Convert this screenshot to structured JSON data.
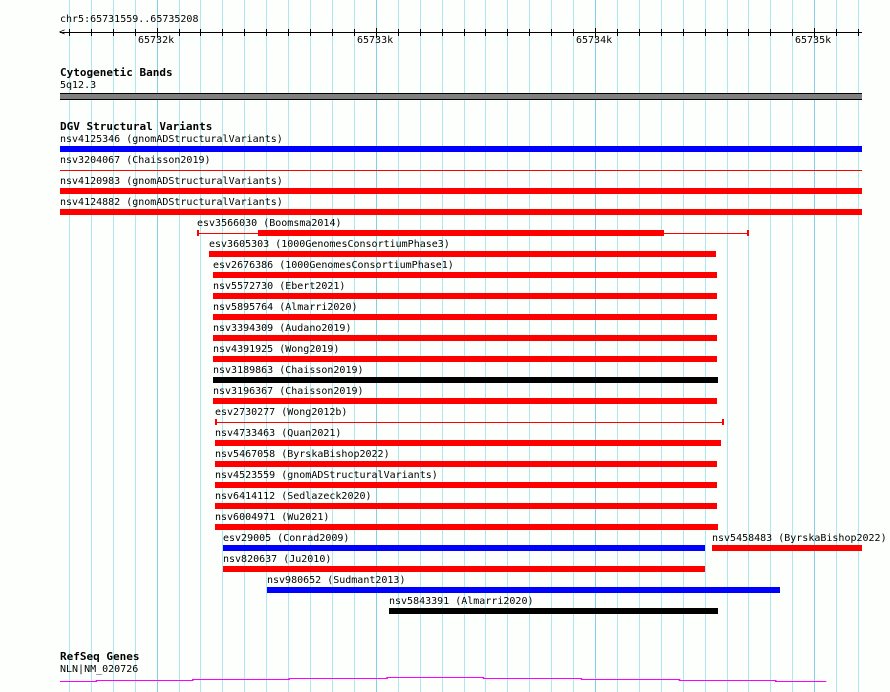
{
  "ruler": {
    "location": "chr5:65731559..65735208",
    "start": 65731559,
    "end": 65735208,
    "tick_labels": [
      {
        "pos": 65732000,
        "label": "65732k"
      },
      {
        "pos": 65733000,
        "label": "65733k"
      },
      {
        "pos": 65734000,
        "label": "65734k"
      },
      {
        "pos": 65735000,
        "label": "65735k"
      }
    ]
  },
  "tracks": {
    "cytoband": {
      "title": "Cytogenetic Bands",
      "band": "5q12.3",
      "color": "#808080"
    },
    "dgv": {
      "title": "DGV Structural Variants"
    },
    "refseq": {
      "title": "RefSeq Genes",
      "gene": "NLN|NM_020726",
      "color": "#ff00ff"
    }
  },
  "colors": {
    "red": "#ff0000",
    "blue": "#0000ff",
    "black": "#000000"
  },
  "variants": [
    {
      "label": "nsv4125346 (gnomADStructuralVariants)",
      "row": 0,
      "start": 65731500,
      "end": 65735260,
      "color": "blue",
      "style": "thick"
    },
    {
      "label": "nsv3204067 (Chaisson2019)",
      "row": 1,
      "start": 65731500,
      "end": 65735260,
      "color": "red",
      "style": "line"
    },
    {
      "label": "nsv4120983 (gnomADStructuralVariants)",
      "row": 2,
      "start": 65731500,
      "end": 65735260,
      "color": "red",
      "style": "thick"
    },
    {
      "label": "nsv4124882 (gnomADStructuralVariants)",
      "row": 3,
      "start": 65731500,
      "end": 65735250,
      "color": "red",
      "style": "thick"
    },
    {
      "label": "esv3566030 (Boomsma2014)",
      "row": 4,
      "start": 65732184,
      "end": 65734702,
      "thick_start": 65732462,
      "thick_end": 65734315,
      "color": "red",
      "style": "mixed"
    },
    {
      "label": "esv3605303 (1000GenomesConsortiumPhase3)",
      "row": 5,
      "start": 65732239,
      "end": 65734552,
      "color": "red",
      "style": "thick"
    },
    {
      "label": "esv2676386 (1000GenomesConsortiumPhase1)",
      "row": 6,
      "start": 65732257,
      "end": 65734556,
      "color": "red",
      "style": "thick"
    },
    {
      "label": "nsv5572730 (Ebert2021)",
      "row": 7,
      "start": 65732257,
      "end": 65734556,
      "color": "red",
      "style": "thick"
    },
    {
      "label": "nsv5895764 (Almarri2020)",
      "row": 8,
      "start": 65732257,
      "end": 65734556,
      "color": "red",
      "style": "thick"
    },
    {
      "label": "nsv3394309 (Audano2019)",
      "row": 9,
      "start": 65732257,
      "end": 65734556,
      "color": "red",
      "style": "thick"
    },
    {
      "label": "nsv4391925 (Wong2019)",
      "row": 10,
      "start": 65732257,
      "end": 65734556,
      "color": "red",
      "style": "thick"
    },
    {
      "label": "nsv3189863 (Chaisson2019)",
      "row": 11,
      "start": 65732257,
      "end": 65734561,
      "color": "black",
      "style": "thick"
    },
    {
      "label": "nsv3196367 (Chaisson2019)",
      "row": 12,
      "start": 65732257,
      "end": 65734556,
      "color": "red",
      "style": "thick"
    },
    {
      "label": "esv2730277 (Wong2012b)",
      "row": 13,
      "start": 65732266,
      "end": 65734588,
      "color": "red",
      "style": "line"
    },
    {
      "label": "nsv4733463 (Quan2021)",
      "row": 14,
      "start": 65732266,
      "end": 65734574,
      "color": "red",
      "style": "thick"
    },
    {
      "label": "nsv5467058 (ByrskaBishop2022)",
      "row": 15,
      "start": 65732266,
      "end": 65734556,
      "color": "red",
      "style": "thick"
    },
    {
      "label": "nsv4523559 (gnomADStructuralVariants)",
      "row": 16,
      "start": 65732266,
      "end": 65734556,
      "color": "red",
      "style": "thick"
    },
    {
      "label": "nsv6414112 (Sedlazeck2020)",
      "row": 17,
      "start": 65732266,
      "end": 65734556,
      "color": "red",
      "style": "thick"
    },
    {
      "label": "nsv6004971 (Wu2021)",
      "row": 18,
      "start": 65732266,
      "end": 65734561,
      "color": "red",
      "style": "thick"
    },
    {
      "label": "esv29005 (Conrad2009)",
      "row": 19,
      "start": 65732303,
      "end": 65734502,
      "color": "blue",
      "style": "thick"
    },
    {
      "label": "nsv5458483 (ByrskaBishop2022)",
      "row": 19,
      "start": 65734533,
      "end": 65735260,
      "color": "red",
      "style": "thick"
    },
    {
      "label": "nsv820637 (Ju2010)",
      "row": 20,
      "start": 65732303,
      "end": 65734502,
      "color": "red",
      "style": "thick"
    },
    {
      "label": "nsv980652 (Sudmant2013)",
      "row": 21,
      "start": 65732503,
      "end": 65734844,
      "color": "blue",
      "style": "thick"
    },
    {
      "label": "nsv5843391 (Almarri2020)",
      "row": 22,
      "start": 65733060,
      "end": 65734561,
      "color": "black",
      "style": "thick"
    }
  ]
}
